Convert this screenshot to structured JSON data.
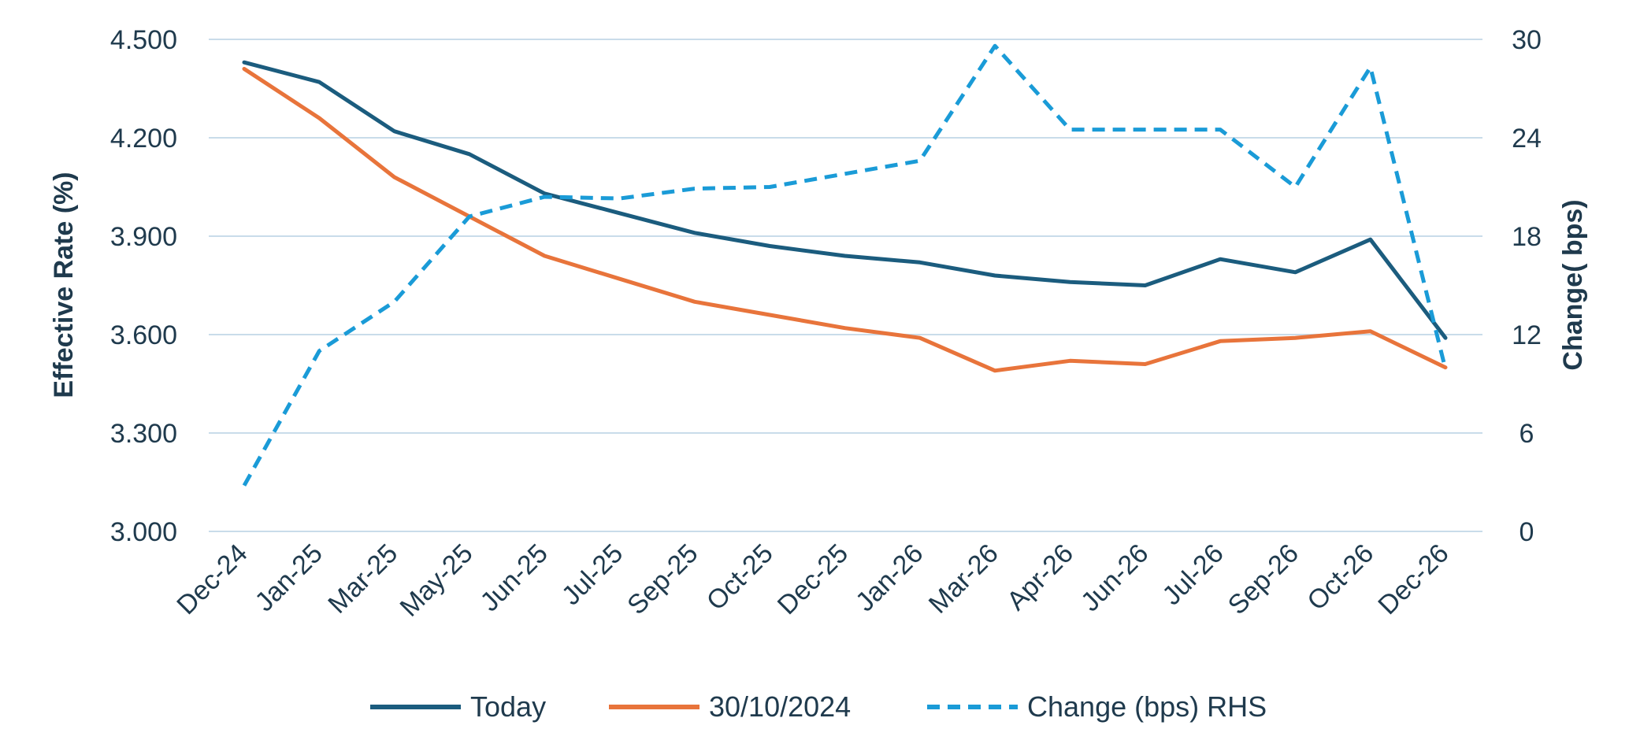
{
  "chart_data": {
    "type": "line",
    "categories": [
      "Dec-24",
      "Jan-25",
      "Mar-25",
      "May-25",
      "Jun-25",
      "Jul-25",
      "Sep-25",
      "Oct-25",
      "Dec-25",
      "Jan-26",
      "Mar-26",
      "Apr-26",
      "Jun-26",
      "Jul-26",
      "Sep-26",
      "Oct-26",
      "Dec-26"
    ],
    "ylabel": "Effective Rate (%)",
    "y2label": "Change( bps)",
    "ylim": [
      3.0,
      4.5
    ],
    "yticks": [
      "3.000",
      "3.300",
      "3.600",
      "3.900",
      "4.200",
      "4.500"
    ],
    "y2lim": [
      0,
      30
    ],
    "y2ticks": [
      "0",
      "6",
      "12",
      "18",
      "24",
      "30"
    ],
    "grid": true,
    "legend_position": "bottom",
    "series": [
      {
        "name": "Today",
        "axis": "left",
        "color": "#1b5c7e",
        "dashed": false,
        "values": [
          4.43,
          4.37,
          4.22,
          4.15,
          4.03,
          3.97,
          3.91,
          3.87,
          3.84,
          3.82,
          3.78,
          3.76,
          3.75,
          3.83,
          3.79,
          3.89,
          3.59
        ]
      },
      {
        "name": "30/10/2024",
        "axis": "left",
        "color": "#e8743b",
        "dashed": false,
        "values": [
          4.41,
          4.26,
          4.08,
          3.96,
          3.84,
          3.77,
          3.7,
          3.66,
          3.62,
          3.59,
          3.49,
          3.52,
          3.51,
          3.58,
          3.59,
          3.61,
          3.5
        ]
      },
      {
        "name": "Change (bps) RHS",
        "axis": "right",
        "color": "#1a9bd7",
        "dashed": true,
        "values": [
          2.8,
          11.0,
          14.0,
          19.2,
          20.4,
          20.3,
          20.9,
          21.0,
          21.8,
          22.6,
          29.6,
          24.5,
          24.5,
          24.5,
          21.0,
          28.3,
          9.9
        ]
      }
    ]
  }
}
